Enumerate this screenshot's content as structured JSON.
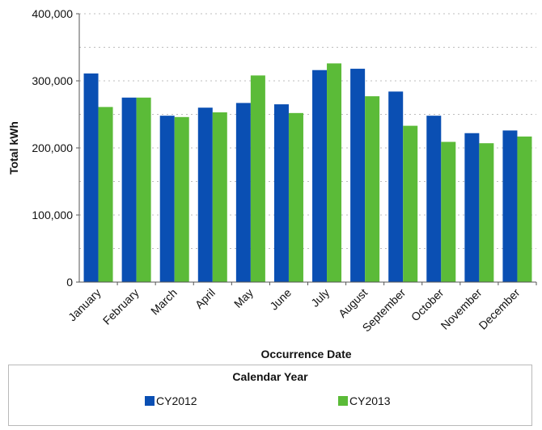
{
  "chart_data": {
    "type": "bar",
    "categories": [
      "January",
      "February",
      "March",
      "April",
      "May",
      "June",
      "July",
      "August",
      "September",
      "October",
      "November",
      "December"
    ],
    "series": [
      {
        "name": "CY2012",
        "color": "#0a4fb3",
        "values": [
          311000,
          275000,
          248000,
          260000,
          267000,
          265000,
          316000,
          318000,
          284000,
          248000,
          222000,
          226000
        ]
      },
      {
        "name": "CY2013",
        "color": "#5bbb38",
        "values": [
          261000,
          275000,
          246000,
          253000,
          308000,
          252000,
          326000,
          277000,
          233000,
          209000,
          207000,
          217000
        ]
      }
    ],
    "xlabel": "Occurrence Date",
    "ylabel": "Total kWh",
    "ylim": [
      0,
      400000
    ],
    "yticks": [
      "0",
      "100,000",
      "200,000",
      "300,000",
      "400,000"
    ],
    "grid": "dotted horizontal",
    "legend_placement": "bottom"
  },
  "legend": {
    "title": "Calendar Year",
    "items": [
      {
        "label": "CY2012",
        "color": "#0a4fb3"
      },
      {
        "label": "CY2013",
        "color": "#5bbb38"
      }
    ]
  }
}
